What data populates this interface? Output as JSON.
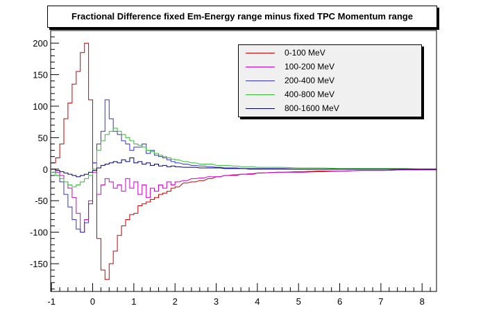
{
  "chart_data": {
    "type": "line",
    "title": "Fractional Difference fixed Em-Energy range minus fixed TPC Momentum range",
    "xlabel": "",
    "ylabel": "",
    "xlim": [
      -1.02,
      8.35
    ],
    "ylim": [
      -194,
      220
    ],
    "x_ticks": [
      -1,
      0,
      1,
      2,
      3,
      4,
      5,
      6,
      7,
      8
    ],
    "y_ticks": [
      -150,
      -100,
      -50,
      0,
      50,
      100,
      150,
      200
    ],
    "x_tick_labels": [
      "-1",
      "0",
      "1",
      "2",
      "3",
      "4",
      "5",
      "6",
      "7",
      "8"
    ],
    "y_tick_labels": [
      "-150",
      "-100",
      "-50",
      "0",
      "50",
      "100",
      "150",
      "200"
    ],
    "grid": false,
    "legend_position": "top-right",
    "bin_width": 0.1,
    "series": [
      {
        "name": "0-100 MeV",
        "color": "#cc0000",
        "x": [
          -1.0,
          -0.9,
          -0.8,
          -0.7,
          -0.6,
          -0.5,
          -0.4,
          -0.3,
          -0.2,
          -0.1,
          0.0,
          0.1,
          0.2,
          0.3,
          0.4,
          0.5,
          0.6,
          0.7,
          0.8,
          0.9,
          1.0,
          1.1,
          1.2,
          1.3,
          1.4,
          1.5,
          1.6,
          1.7,
          1.8,
          1.9,
          2.0,
          2.2,
          2.4,
          2.6,
          2.8,
          3.0,
          3.2,
          3.4,
          3.6,
          3.8,
          4.0,
          4.5,
          5.0,
          5.5,
          6.0,
          6.5,
          7.0,
          7.5,
          8.0,
          8.3
        ],
        "values": [
          10,
          18,
          40,
          80,
          105,
          135,
          155,
          185,
          200,
          110,
          10,
          -110,
          -160,
          -175,
          -150,
          -130,
          -105,
          -90,
          -80,
          -72,
          -70,
          -58,
          -55,
          -52,
          -48,
          -45,
          -40,
          -38,
          -35,
          -30,
          -28,
          -22,
          -20,
          -18,
          -15,
          -12,
          -10,
          -9,
          -8,
          -8,
          -6,
          -5,
          -4,
          -3,
          -3,
          -2,
          -2,
          -1,
          -1,
          -1
        ]
      },
      {
        "name": "100-200 MeV",
        "color": "#cc00cc",
        "x": [
          -1.0,
          -0.9,
          -0.8,
          -0.7,
          -0.6,
          -0.5,
          -0.4,
          -0.3,
          -0.2,
          -0.1,
          0.0,
          0.1,
          0.2,
          0.3,
          0.4,
          0.5,
          0.6,
          0.7,
          0.8,
          0.9,
          1.0,
          1.1,
          1.2,
          1.3,
          1.4,
          1.5,
          1.6,
          1.7,
          1.8,
          1.9,
          2.0,
          2.2,
          2.4,
          2.6,
          2.8,
          3.0,
          3.2,
          3.4,
          3.6,
          3.8,
          4.0,
          4.5,
          5.0,
          5.5,
          6.0,
          6.5,
          7.0,
          7.5,
          8.0,
          8.3
        ],
        "values": [
          0,
          -5,
          -10,
          -20,
          -30,
          -45,
          -70,
          -100,
          -80,
          -50,
          -5,
          -40,
          -25,
          -15,
          -20,
          -30,
          -25,
          -35,
          -15,
          -30,
          -20,
          -40,
          -25,
          -45,
          -30,
          -35,
          -25,
          -30,
          -20,
          -25,
          -20,
          -18,
          -15,
          -14,
          -12,
          -12,
          -10,
          -10,
          -8,
          -7,
          -6,
          -5,
          -5,
          -4,
          -3,
          -2,
          -2,
          -1,
          -1,
          -1
        ]
      },
      {
        "name": "200-400 MeV",
        "color": "#3333cc",
        "x": [
          -1.0,
          -0.9,
          -0.8,
          -0.7,
          -0.6,
          -0.5,
          -0.4,
          -0.3,
          -0.2,
          -0.1,
          0.0,
          0.1,
          0.2,
          0.3,
          0.4,
          0.5,
          0.6,
          0.7,
          0.8,
          0.9,
          1.0,
          1.1,
          1.2,
          1.3,
          1.4,
          1.5,
          1.6,
          1.7,
          1.8,
          1.9,
          2.0,
          2.2,
          2.4,
          2.6,
          2.8,
          3.0,
          3.2,
          3.4,
          3.6,
          3.8,
          4.0,
          4.5,
          5.0,
          5.5,
          6.0,
          6.5,
          7.0,
          7.5,
          8.0,
          8.3
        ],
        "values": [
          -5,
          -10,
          -20,
          -40,
          -60,
          -80,
          -95,
          -100,
          -85,
          -55,
          10,
          40,
          60,
          110,
          80,
          60,
          55,
          45,
          40,
          30,
          35,
          35,
          40,
          25,
          30,
          22,
          20,
          18,
          15,
          12,
          10,
          8,
          6,
          5,
          4,
          3,
          2,
          2,
          1,
          1,
          1,
          1,
          0,
          0,
          0,
          0,
          0,
          0,
          0,
          0
        ]
      },
      {
        "name": "400-800 MeV",
        "color": "#33bb33",
        "x": [
          -1.0,
          -0.9,
          -0.8,
          -0.7,
          -0.6,
          -0.5,
          -0.4,
          -0.3,
          -0.2,
          -0.1,
          0.0,
          0.1,
          0.2,
          0.3,
          0.4,
          0.5,
          0.6,
          0.7,
          0.8,
          0.9,
          1.0,
          1.1,
          1.2,
          1.3,
          1.4,
          1.5,
          1.6,
          1.7,
          1.8,
          1.9,
          2.0,
          2.2,
          2.4,
          2.6,
          2.8,
          3.0,
          3.2,
          3.4,
          3.6,
          3.8,
          4.0,
          4.5,
          5.0,
          5.5,
          6.0,
          6.5,
          7.0,
          7.5,
          8.0,
          8.3
        ],
        "values": [
          -5,
          -10,
          -15,
          -20,
          -25,
          -28,
          -25,
          -20,
          -15,
          -10,
          0,
          30,
          45,
          55,
          60,
          65,
          60,
          55,
          50,
          45,
          40,
          38,
          35,
          30,
          28,
          25,
          22,
          20,
          18,
          16,
          15,
          12,
          10,
          8,
          8,
          6,
          6,
          5,
          4,
          4,
          3,
          3,
          2,
          2,
          1,
          1,
          1,
          1,
          0,
          0
        ]
      },
      {
        "name": "800-1600 MeV",
        "color": "#000066",
        "x": [
          -1.0,
          -0.9,
          -0.8,
          -0.7,
          -0.6,
          -0.5,
          -0.4,
          -0.3,
          -0.2,
          -0.1,
          0.0,
          0.1,
          0.2,
          0.3,
          0.4,
          0.5,
          0.6,
          0.7,
          0.8,
          0.9,
          1.0,
          1.1,
          1.2,
          1.3,
          1.4,
          1.5,
          1.6,
          1.7,
          1.8,
          1.9,
          2.0,
          2.2,
          2.4,
          2.6,
          2.8,
          3.0,
          3.2,
          3.4,
          3.6,
          3.8,
          4.0,
          4.5,
          5.0,
          5.5,
          6.0,
          6.5,
          7.0,
          7.5,
          8.0,
          8.3
        ],
        "values": [
          0,
          -2,
          -4,
          -6,
          -8,
          -10,
          -12,
          -10,
          -8,
          -5,
          -2,
          2,
          6,
          8,
          10,
          12,
          10,
          15,
          12,
          18,
          10,
          12,
          8,
          10,
          6,
          8,
          5,
          6,
          4,
          5,
          4,
          3,
          3,
          2,
          2,
          2,
          1,
          1,
          1,
          0,
          0,
          0,
          0,
          0,
          0,
          0,
          0,
          0,
          0,
          0
        ]
      }
    ]
  }
}
